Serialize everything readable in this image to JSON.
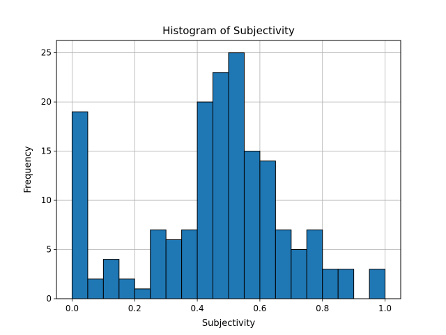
{
  "chart_data": {
    "type": "bar",
    "title": "Histogram of Subjectivity",
    "xlabel": "Subjectivity",
    "ylabel": "Frequency",
    "bin_edges": [
      0.0,
      0.05,
      0.1,
      0.15,
      0.2,
      0.25,
      0.3,
      0.35,
      0.4,
      0.45,
      0.5,
      0.55,
      0.6,
      0.65,
      0.7,
      0.75,
      0.8,
      0.85,
      0.9,
      0.95,
      1.0
    ],
    "values": [
      19,
      2,
      4,
      2,
      1,
      7,
      6,
      7,
      20,
      23,
      25,
      15,
      14,
      7,
      5,
      7,
      3,
      3,
      0,
      3
    ],
    "xlim": [
      -0.05,
      1.05
    ],
    "ylim": [
      0,
      26.25
    ],
    "xticks": [
      0.0,
      0.2,
      0.4,
      0.6,
      0.8,
      1.0
    ],
    "xtick_labels": [
      "0.0",
      "0.2",
      "0.4",
      "0.6",
      "0.8",
      "1.0"
    ],
    "yticks": [
      0,
      5,
      10,
      15,
      20,
      25
    ],
    "ytick_labels": [
      "0",
      "5",
      "10",
      "15",
      "20",
      "25"
    ],
    "grid": true,
    "bar_color": "#1f77b4",
    "edge_color": "#000000",
    "grid_color": "#b0b0b0"
  }
}
